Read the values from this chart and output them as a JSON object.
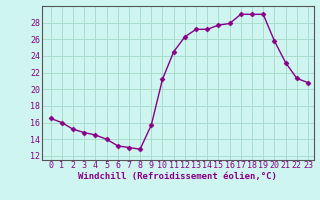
{
  "x": [
    0,
    1,
    2,
    3,
    4,
    5,
    6,
    7,
    8,
    9,
    10,
    11,
    12,
    13,
    14,
    15,
    16,
    17,
    18,
    19,
    20,
    21,
    22,
    23
  ],
  "y": [
    16.5,
    16.0,
    15.2,
    14.8,
    14.5,
    14.0,
    13.2,
    13.0,
    12.8,
    15.7,
    21.2,
    24.5,
    26.3,
    27.2,
    27.2,
    27.7,
    27.9,
    29.0,
    29.0,
    29.0,
    25.8,
    23.2,
    21.3,
    20.8
  ],
  "line_color": "#880088",
  "marker": "D",
  "marker_size": 2.5,
  "bg_color": "#cef5f0",
  "grid_color": "#aaddcc",
  "xlabel": "Windchill (Refroidissement éolien,°C)",
  "xlabel_color": "#880088",
  "tick_color": "#880088",
  "axis_color": "#555555",
  "ylim": [
    11.5,
    30
  ],
  "yticks": [
    12,
    14,
    16,
    18,
    20,
    22,
    24,
    26,
    28
  ],
  "xticks": [
    0,
    1,
    2,
    3,
    4,
    5,
    6,
    7,
    8,
    9,
    10,
    11,
    12,
    13,
    14,
    15,
    16,
    17,
    18,
    19,
    20,
    21,
    22,
    23
  ],
  "xlabel_fontsize": 6.5,
  "tick_fontsize": 6,
  "line_width": 1.0
}
